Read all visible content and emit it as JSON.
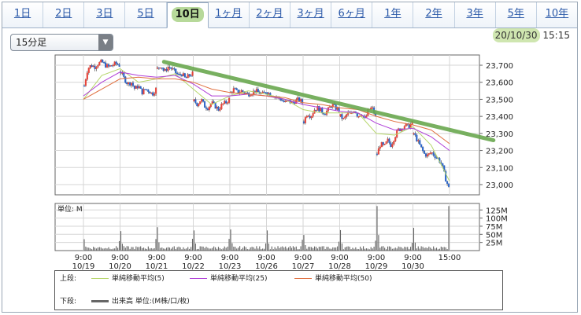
{
  "tabs": [
    {
      "label": "1日",
      "active": false
    },
    {
      "label": "2日",
      "active": false
    },
    {
      "label": "3日",
      "active": false
    },
    {
      "label": "5日",
      "active": false
    },
    {
      "label": "10日",
      "active": true
    },
    {
      "label": "1ヶ月",
      "active": false
    },
    {
      "label": "2ヶ月",
      "active": false
    },
    {
      "label": "3ヶ月",
      "active": false
    },
    {
      "label": "6ヶ月",
      "active": false
    },
    {
      "label": "1年",
      "active": false
    },
    {
      "label": "2年",
      "active": false
    },
    {
      "label": "3年",
      "active": false
    },
    {
      "label": "5年",
      "active": false
    },
    {
      "label": "10年",
      "active": false
    }
  ],
  "interval_select": {
    "value": "15分足"
  },
  "timestamp": {
    "date": "20/10/30",
    "time": "15:15"
  },
  "colors": {
    "ma5": "#b5d66a",
    "ma25": "#b040d8",
    "ma50": "#e07040",
    "up_candle": "#e8443a",
    "down_candle": "#2a64c8",
    "volume": "#666666",
    "trend_annotation": "#6aa84f"
  },
  "chart_data": {
    "type": "candlestick",
    "price_axis": {
      "ticks": [
        "23,700",
        "23,600",
        "23,500",
        "23,400",
        "23,300",
        "23,200",
        "23,100",
        "23,000"
      ],
      "ylim": [
        22940,
        23760
      ]
    },
    "volume_axis": {
      "label": "単位: M",
      "ticks": [
        "125M",
        "100M",
        "75M",
        "50M",
        "25M"
      ],
      "ylim": [
        0,
        145
      ]
    },
    "x_ticks": [
      {
        "time": "9:00",
        "date": "10/19",
        "day": 0
      },
      {
        "time": "9:00",
        "date": "10/20",
        "day": 1
      },
      {
        "time": "9:00",
        "date": "10/21",
        "day": 2
      },
      {
        "time": "9:00",
        "date": "10/22",
        "day": 3
      },
      {
        "time": "9:00",
        "date": "10/23",
        "day": 4
      },
      {
        "time": "9:00",
        "date": "10/26",
        "day": 5
      },
      {
        "time": "9:00",
        "date": "10/27",
        "day": 6
      },
      {
        "time": "9:00",
        "date": "10/28",
        "day": 7
      },
      {
        "time": "9:00",
        "date": "10/29",
        "day": 8
      },
      {
        "time": "9:00",
        "date": "10/30",
        "day": 9
      },
      {
        "time": "15:00",
        "date": "",
        "day": 10
      }
    ],
    "days": [
      {
        "date": "10/19",
        "path": [
          23580,
          23680,
          23700,
          23690,
          23710,
          23720,
          23700,
          23690,
          23700,
          23710,
          23700
        ]
      },
      {
        "date": "10/20",
        "path": [
          23660,
          23620,
          23590,
          23600,
          23560,
          23580,
          23540,
          23560,
          23550,
          23530,
          23560
        ]
      },
      {
        "date": "10/21",
        "path": [
          23680,
          23700,
          23660,
          23690,
          23680,
          23660,
          23640,
          23650,
          23620,
          23640,
          23650
        ]
      },
      {
        "date": "10/22",
        "path": [
          23490,
          23470,
          23500,
          23460,
          23450,
          23480,
          23460,
          23440,
          23470,
          23480,
          23500
        ]
      },
      {
        "date": "10/23",
        "path": [
          23540,
          23560,
          23540,
          23550,
          23540,
          23530,
          23540,
          23550,
          23540,
          23530,
          23540
        ]
      },
      {
        "date": "10/26",
        "path": [
          23540,
          23530,
          23520,
          23510,
          23500,
          23480,
          23490,
          23480,
          23490,
          23500,
          23480
        ]
      },
      {
        "date": "10/27",
        "path": [
          23370,
          23420,
          23400,
          23440,
          23450,
          23430,
          23420,
          23440,
          23470,
          23450,
          23440
        ]
      },
      {
        "date": "10/28",
        "path": [
          23400,
          23380,
          23420,
          23410,
          23440,
          23400,
          23420,
          23380,
          23440,
          23450,
          23400
        ]
      },
      {
        "date": "10/29",
        "path": [
          23180,
          23240,
          23220,
          23260,
          23230,
          23280,
          23320,
          23330,
          23350,
          23340,
          23360
        ]
      },
      {
        "date": "10/30",
        "path": [
          23300,
          23260,
          23220,
          23180,
          23170,
          23190,
          23170,
          23150,
          23120,
          23040,
          22980
        ]
      }
    ],
    "volume_open_spikes": [
      35,
      60,
      72,
      62,
      65,
      62,
      48,
      63,
      137,
      70
    ],
    "volume_close_spike": 137,
    "ma_lines": [
      {
        "name": "単純移動平均(5)",
        "color": "#b5d66a",
        "points": [
          [
            0,
            23500
          ],
          [
            0.5,
            23640
          ],
          [
            1,
            23680
          ],
          [
            1.5,
            23600
          ],
          [
            2,
            23620
          ],
          [
            2.5,
            23650
          ],
          [
            3,
            23560
          ],
          [
            3.5,
            23470
          ],
          [
            4,
            23520
          ],
          [
            4.5,
            23550
          ],
          [
            5,
            23530
          ],
          [
            5.5,
            23500
          ],
          [
            6,
            23440
          ],
          [
            6.5,
            23420
          ],
          [
            7,
            23420
          ],
          [
            7.5,
            23420
          ],
          [
            8,
            23300
          ],
          [
            8.5,
            23290
          ],
          [
            9,
            23340
          ],
          [
            9.5,
            23230
          ],
          [
            10,
            23020
          ]
        ]
      },
      {
        "name": "単純移動平均(25)",
        "color": "#b040d8",
        "points": [
          [
            0,
            23520
          ],
          [
            0.5,
            23600
          ],
          [
            1,
            23660
          ],
          [
            1.5,
            23640
          ],
          [
            2,
            23630
          ],
          [
            2.5,
            23640
          ],
          [
            3,
            23590
          ],
          [
            3.5,
            23520
          ],
          [
            4,
            23520
          ],
          [
            4.5,
            23530
          ],
          [
            5,
            23520
          ],
          [
            5.5,
            23500
          ],
          [
            6,
            23470
          ],
          [
            6.5,
            23450
          ],
          [
            7,
            23430
          ],
          [
            7.5,
            23420
          ],
          [
            8,
            23360
          ],
          [
            8.5,
            23320
          ],
          [
            9,
            23330
          ],
          [
            9.5,
            23280
          ],
          [
            10,
            23200
          ]
        ]
      },
      {
        "name": "単純移動平均(50)",
        "color": "#e07040",
        "points": [
          [
            0,
            23500
          ],
          [
            0.5,
            23560
          ],
          [
            1,
            23620
          ],
          [
            1.5,
            23630
          ],
          [
            2,
            23620
          ],
          [
            2.5,
            23620
          ],
          [
            3,
            23600
          ],
          [
            3.5,
            23560
          ],
          [
            4,
            23540
          ],
          [
            4.5,
            23530
          ],
          [
            5,
            23520
          ],
          [
            5.5,
            23510
          ],
          [
            6,
            23480
          ],
          [
            6.5,
            23470
          ],
          [
            7,
            23450
          ],
          [
            7.5,
            23440
          ],
          [
            8,
            23400
          ],
          [
            8.5,
            23370
          ],
          [
            9,
            23350
          ],
          [
            9.5,
            23320
          ],
          [
            10,
            23240
          ]
        ]
      }
    ],
    "trend_annotation": {
      "from": [
        2.2,
        23720
      ],
      "to": [
        11.2,
        23260
      ]
    }
  },
  "legend": {
    "upper_label": "上段:",
    "lower_label": "下段:",
    "items": [
      {
        "label": "単純移動平均(5)"
      },
      {
        "label": "単純移動平均(25)"
      },
      {
        "label": "単純移動平均(50)"
      }
    ],
    "volume_label": "出来高 単位:(M株/口/枚)"
  }
}
